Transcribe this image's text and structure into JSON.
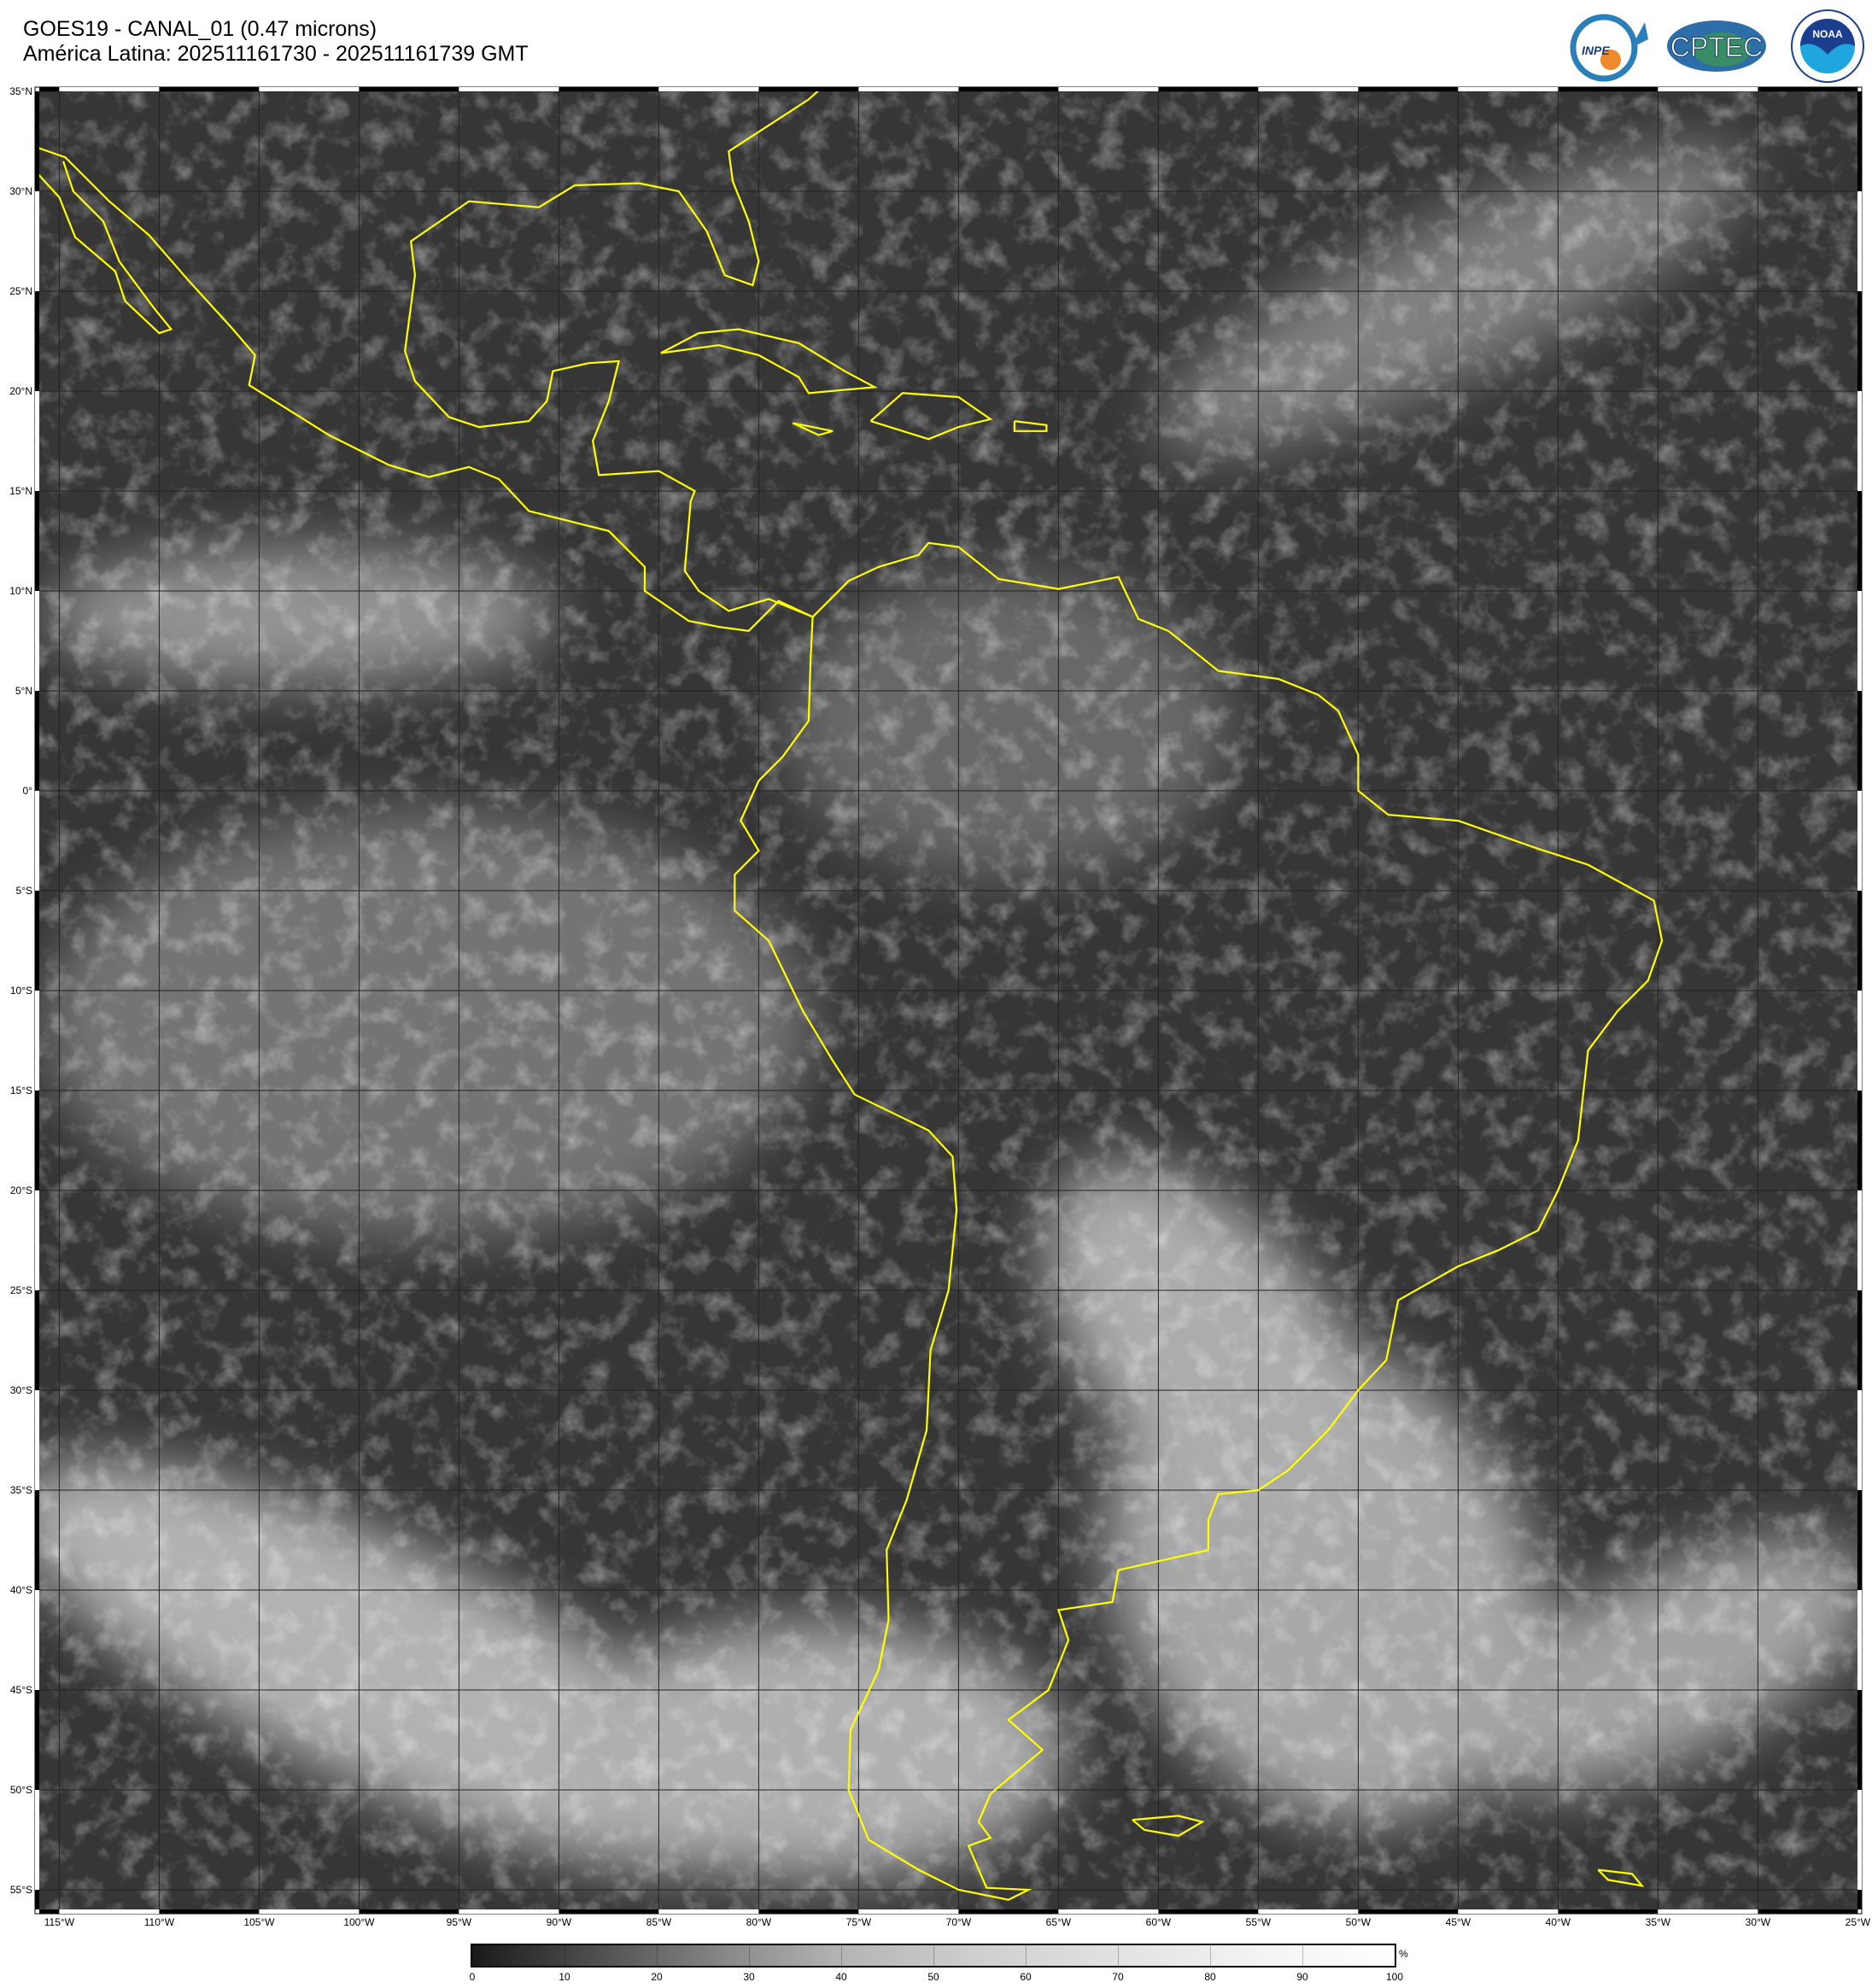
{
  "header": {
    "title": "GOES19 - CANAL_01 (0.47 microns)",
    "subtitle": "América Latina: 202511161730 - 202511161739 GMT"
  },
  "logos": [
    {
      "name": "INPE",
      "text": "INPE"
    },
    {
      "name": "CPTEC",
      "text": "CPTEC"
    },
    {
      "name": "NOAA",
      "text": "NOAA"
    }
  ],
  "map": {
    "lat_labels": [
      "35°N",
      "30°N",
      "25°N",
      "20°N",
      "15°N",
      "10°N",
      "5°N",
      "0°",
      "5°S",
      "10°S",
      "15°S",
      "20°S",
      "25°S",
      "30°S",
      "35°S",
      "40°S",
      "45°S",
      "50°S",
      "55°S"
    ],
    "lon_labels": [
      "115°W",
      "110°W",
      "105°W",
      "100°W",
      "95°W",
      "90°W",
      "85°W",
      "80°W",
      "75°W",
      "70°W",
      "65°W",
      "60°W",
      "55°W",
      "50°W",
      "45°W",
      "40°W",
      "35°W",
      "30°W",
      "25°W"
    ],
    "coastline_color": "#ffff00",
    "grid": true
  },
  "colorbar": {
    "ticks": [
      "0",
      "10",
      "20",
      "30",
      "40",
      "50",
      "60",
      "70",
      "80",
      "90",
      "100"
    ],
    "unit": "%",
    "range": [
      0,
      100
    ]
  }
}
